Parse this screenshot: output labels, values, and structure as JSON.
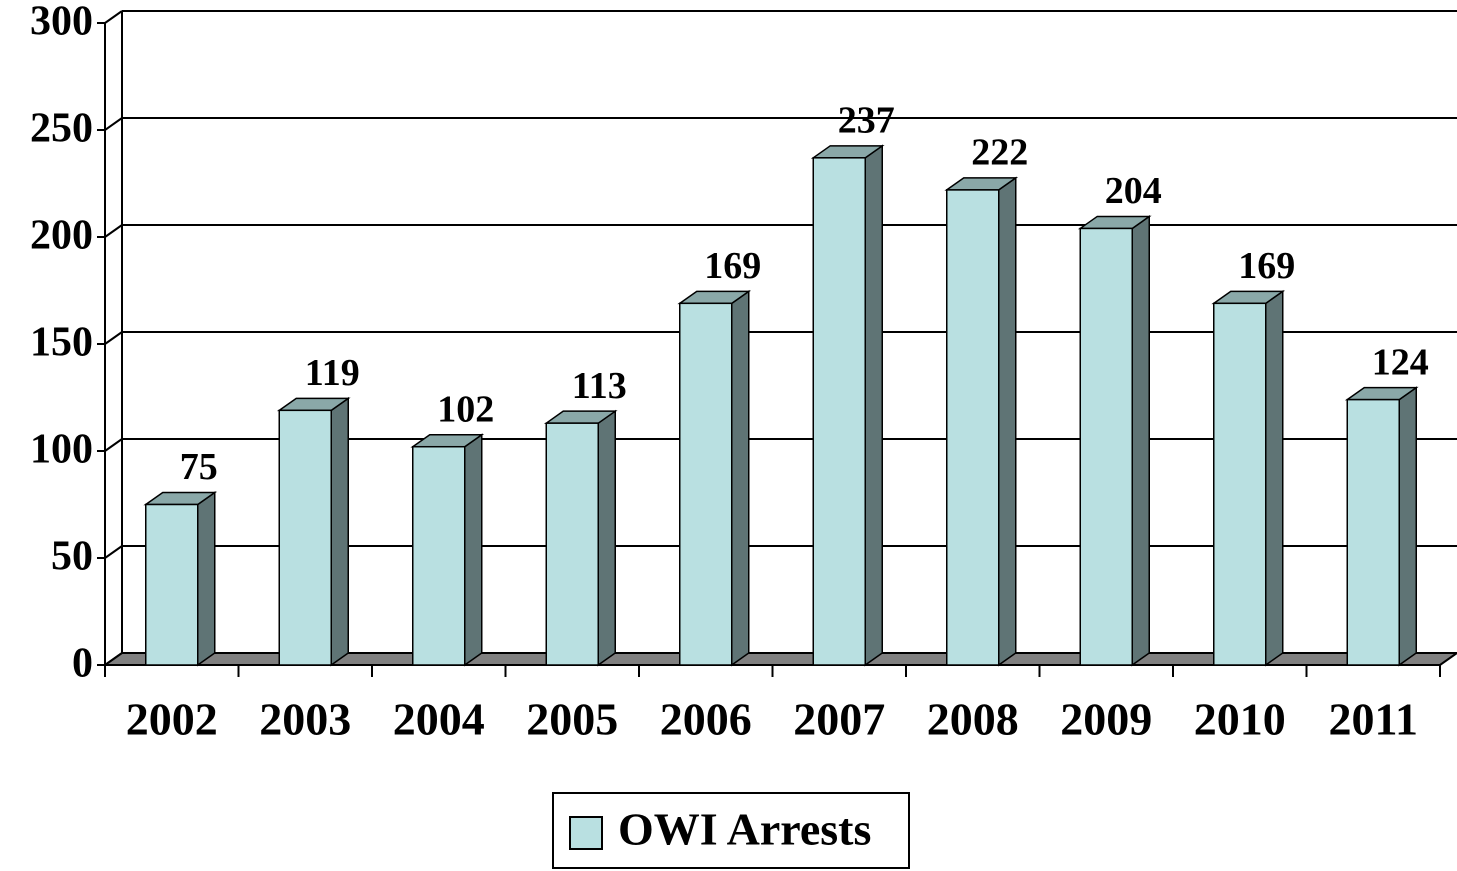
{
  "chart_data": {
    "type": "bar3d",
    "categories": [
      "2002",
      "2003",
      "2004",
      "2005",
      "2006",
      "2007",
      "2008",
      "2009",
      "2010",
      "2011"
    ],
    "series": [
      {
        "name": "OWI Arrests",
        "color": "#b9e0e1",
        "values": [
          75,
          119,
          102,
          113,
          169,
          237,
          222,
          204,
          169,
          124
        ]
      }
    ],
    "ylim": [
      0,
      300
    ],
    "yticks": [
      0,
      50,
      100,
      150,
      200,
      250,
      300
    ],
    "grid": true,
    "legend": "bottom"
  }
}
